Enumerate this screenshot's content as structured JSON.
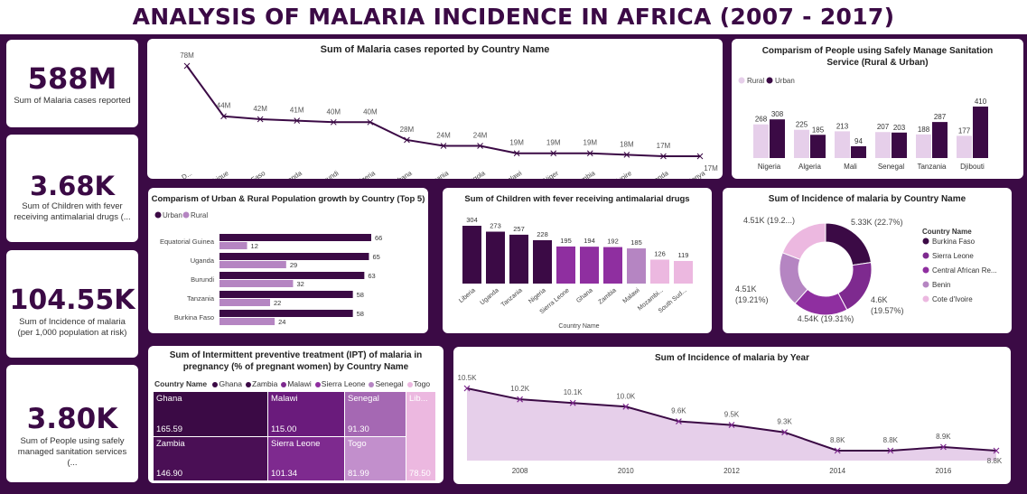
{
  "page": {
    "title": "ANALYSIS OF MALARIA INCIDENCE IN AFRICA (2007 - 2017)"
  },
  "colors": {
    "dark": "#3b0a45",
    "mid": "#7e2a8f",
    "light": "#b585c2",
    "pale": "#e6cfea",
    "purple": "#8f2fa0",
    "pink": "#ecb8e0"
  },
  "kpis": [
    {
      "value": "588M",
      "label": "Sum of Malaria cases reported"
    },
    {
      "value": "3.68K",
      "label": "Sum of Children with fever receiving antimalarial drugs (..."
    },
    {
      "value": "104.55K",
      "label": "Sum of Incidence of malaria (per 1,000 population at risk)"
    },
    {
      "value": "3.80K",
      "label": "Sum of People using safely managed sanitation services (..."
    }
  ],
  "chart_data": [
    {
      "type": "line",
      "title": "Sum of Malaria cases reported by Country Name",
      "categories": [
        "Congo, D...",
        "Mozambique",
        "Burkina Faso",
        "Uganda",
        "Burundi",
        "Nigeria",
        "Ghana",
        "Tanzania",
        "Angola",
        "Malawi",
        "Niger",
        "Zambia",
        "Cote d'Ivoire",
        "Rwanda",
        "Kenya"
      ],
      "values": [
        78,
        44,
        42,
        41,
        40,
        40,
        28,
        24,
        24,
        19,
        19,
        19,
        18,
        17,
        17
      ],
      "labels": [
        "78M",
        "44M",
        "42M",
        "41M",
        "40M",
        "40M",
        "28M",
        "24M",
        "24M",
        "19M",
        "19M",
        "19M",
        "18M",
        "17M",
        "17M"
      ],
      "unit": "M"
    },
    {
      "type": "bar",
      "title": "Comparism of People using Safely Manage Sanitation Service (Rural & Urban)",
      "categories": [
        "Nigeria",
        "Algeria",
        "Mali",
        "Senegal",
        "Tanzania",
        "Djibouti"
      ],
      "series": [
        {
          "name": "Rural",
          "values": [
            268,
            225,
            213,
            207,
            188,
            177
          ]
        },
        {
          "name": "Urban",
          "values": [
            308,
            185,
            94,
            203,
            287,
            410
          ]
        }
      ]
    },
    {
      "type": "bar",
      "orientation": "horizontal",
      "title": "Comparism of Urban & Rural Population growth by Country (Top 5)",
      "categories": [
        "Equatorial Guinea",
        "Uganda",
        "Burundi",
        "Tanzania",
        "Burkina Faso"
      ],
      "series": [
        {
          "name": "Urban",
          "values": [
            66,
            65,
            63,
            58,
            58
          ]
        },
        {
          "name": "Rural",
          "values": [
            12,
            29,
            32,
            22,
            24
          ]
        }
      ]
    },
    {
      "type": "bar",
      "title": "Sum of Children with fever receiving antimalarial drugs",
      "xlabel": "Country Name",
      "categories": [
        "Liberia",
        "Uganda",
        "Tanzania",
        "Nigeria",
        "Sierra Leone",
        "Ghana",
        "Zambia",
        "Malawi",
        "Mozambi...",
        "South Sud..."
      ],
      "values": [
        304,
        273,
        257,
        228,
        195,
        194,
        192,
        185,
        126,
        119
      ]
    },
    {
      "type": "pie",
      "donut": true,
      "title": "Sum of Incidence of malaria by Country Name",
      "legend_title": "Country Name",
      "categories": [
        "Burkina Faso",
        "Sierra Leone",
        "Central African Re...",
        "Benin",
        "Cote d'Ivoire"
      ],
      "values": [
        5.33,
        4.6,
        4.54,
        4.51,
        4.51
      ],
      "labels": [
        "5.33K (22.7%)",
        "4.6K (19.57%)",
        "4.54K (19.31%)",
        "4.51K (19.21%)",
        "4.51K (19.2...)"
      ]
    },
    {
      "type": "treemap",
      "title": "Sum of Intermittent preventive treatment (IPT) of malaria in pregnancy (% of pregnant women) by Country Name",
      "legend_title": "Country Name",
      "legend_items": [
        "Ghana",
        "Zambia",
        "Malawi",
        "Sierra Leone",
        "Senegal",
        "Togo"
      ],
      "categories": [
        "Ghana",
        "Zambia",
        "Malawi",
        "Sierra Leone",
        "Senegal",
        "Togo",
        "Lib..."
      ],
      "values": [
        165.59,
        146.9,
        115.0,
        101.34,
        91.3,
        81.99,
        78.5
      ],
      "labels": [
        "165.59",
        "146.90",
        "115.00",
        "101.34",
        "91.30",
        "81.99",
        "78.50"
      ]
    },
    {
      "type": "area",
      "title": "Sum of Incidence of malaria by Year",
      "x": [
        2007,
        2008,
        2009,
        2010,
        2011,
        2012,
        2013,
        2014,
        2015,
        2016,
        2017
      ],
      "values": [
        10.5,
        10.2,
        10.1,
        10.0,
        9.6,
        9.5,
        9.3,
        8.8,
        8.8,
        8.9,
        8.8
      ],
      "labels": [
        "10.5K",
        "10.2K",
        "10.1K",
        "10.0K",
        "9.6K",
        "9.5K",
        "9.3K",
        "8.8K",
        "8.8K",
        "8.9K",
        "8.8K"
      ],
      "x_ticks": [
        "2008",
        "2010",
        "2012",
        "2014",
        "2016"
      ]
    }
  ]
}
